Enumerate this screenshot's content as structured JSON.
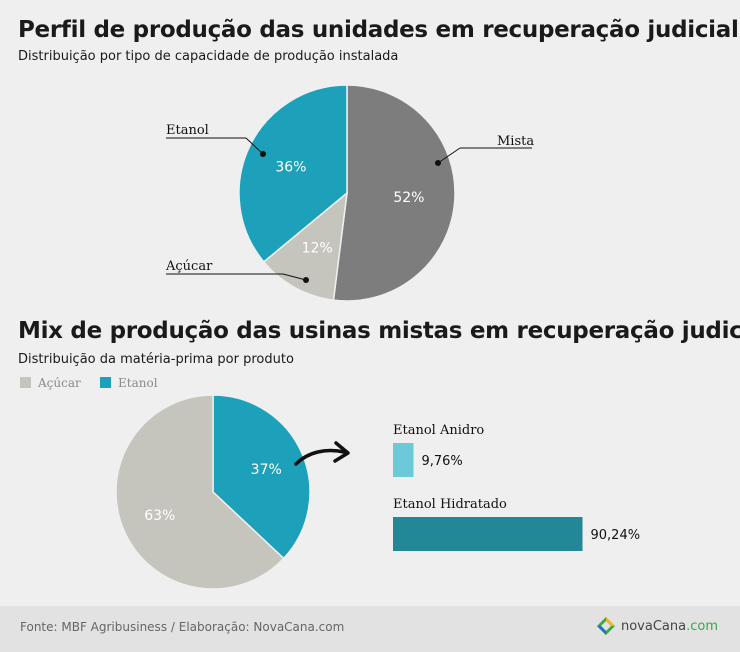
{
  "section1": {
    "title": "Perfil de produção das unidades em recuperação judicial",
    "subtitle": "Distribuição por tipo de capacidade de produção instalada"
  },
  "section2": {
    "title": "Mix de produção das usinas mistas em recuperação judicial",
    "subtitle": "Distribuição da matéria-prima por produto",
    "legend": [
      {
        "label": "Açúcar",
        "color": "#c5c4bd"
      },
      {
        "label": "Etanol",
        "color": "#1da0b9"
      }
    ]
  },
  "chart_data": [
    {
      "type": "pie",
      "title": "Perfil de produção das unidades em recuperação judicial",
      "subtitle": "Distribuição por tipo de capacidade de produção instalada",
      "slices": [
        {
          "label": "Mista",
          "value": 52,
          "display": "52%",
          "color": "#7d7d7d"
        },
        {
          "label": "Açúcar",
          "value": 12,
          "display": "12%",
          "color": "#c5c4bd"
        },
        {
          "label": "Etanol",
          "value": 36,
          "display": "36%",
          "color": "#1da0b9"
        }
      ]
    },
    {
      "type": "pie",
      "title": "Mix de produção das usinas mistas em recuperação judicial",
      "subtitle": "Distribuição da matéria-prima por produto",
      "slices": [
        {
          "label": "Etanol",
          "value": 37,
          "display": "37%",
          "color": "#1da0b9"
        },
        {
          "label": "Açúcar",
          "value": 63,
          "display": "63%",
          "color": "#c5c4bd"
        }
      ]
    },
    {
      "type": "bar",
      "orientation": "horizontal",
      "categories": [
        "Etanol Anidro",
        "Etanol Hidratado"
      ],
      "values": [
        9.76,
        90.24
      ],
      "display": [
        "9,76%",
        "90,24%"
      ],
      "colors": [
        "#6bc9d8",
        "#228796"
      ]
    }
  ],
  "footer": {
    "source": "Fonte: MBF Agribusiness / Elaboração: NovaCana.com",
    "logo_main": "novaCana",
    "logo_suffix": ".com"
  }
}
